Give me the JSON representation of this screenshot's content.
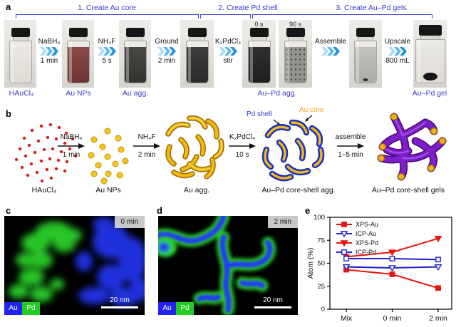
{
  "panel_a": {
    "letter": "a",
    "step_brackets": [
      {
        "label": "1. Create Au core"
      },
      {
        "label": "2. Create Pd shell"
      },
      {
        "label": "3. Create Au–Pd gels"
      }
    ],
    "process_arrows": [
      {
        "top": "NaBH₄",
        "bottom": "1 min"
      },
      {
        "top": "NH₄F",
        "bottom": "5 s"
      },
      {
        "top": "Ground",
        "bottom": "2 min"
      },
      {
        "top": "K₂PdCl₄",
        "bottom": "stir"
      },
      {
        "top": "Assemble",
        "bottom": ""
      },
      {
        "top": "Upscale",
        "bottom": "800 mL"
      }
    ],
    "vial_time_labels": [
      "0 s",
      "90 s"
    ],
    "product_labels": [
      "HAuCl₄",
      "Au NPs",
      "Au agg.",
      "Au–Pd agg.",
      "Au–Pd gel"
    ]
  },
  "panel_b": {
    "letter": "b",
    "stage_labels": [
      "HAuCl₄",
      "Au NPs",
      "Au agg.",
      "Au–Pd core-shell agg.",
      "Au–Pd core-shell gels"
    ],
    "arrows": [
      {
        "top": "NaBH₄",
        "bottom": "1 min"
      },
      {
        "top": "NH₄F",
        "bottom": "2 min"
      },
      {
        "top": "K₂PdCl₄",
        "bottom": "10 s"
      },
      {
        "top": "assemble",
        "bottom": "1–5 min"
      }
    ],
    "callouts": {
      "pd_shell": "Pd shell",
      "au_core": "Au core"
    }
  },
  "panel_c": {
    "letter": "c",
    "time_badge": "0 min",
    "legend": [
      {
        "label": "Au",
        "color": "#2222ee"
      },
      {
        "label": "Pd",
        "color": "#22cc22"
      }
    ],
    "scale_label": "20 nm"
  },
  "panel_d": {
    "letter": "d",
    "time_badge": "2 min",
    "legend": [
      {
        "label": "Au",
        "color": "#2222ee"
      },
      {
        "label": "Pd",
        "color": "#22cc22"
      }
    ],
    "scale_label": "20 nm"
  },
  "panel_e": {
    "letter": "e"
  },
  "chart_data": {
    "type": "line",
    "categories": [
      "Mix",
      "0 min",
      "2 min"
    ],
    "series": [
      {
        "name": "XPS-Au",
        "color": "#e8140c",
        "marker": "square",
        "fill": "filled",
        "values": [
          43,
          38,
          23
        ]
      },
      {
        "name": "ICP-Au",
        "color": "#2222cc",
        "marker": "triangle-down",
        "fill": "open",
        "values": [
          46,
          45,
          46
        ]
      },
      {
        "name": "XPS-Pd",
        "color": "#e8140c",
        "marker": "triangle-down",
        "fill": "filled",
        "values": [
          57,
          62,
          77
        ]
      },
      {
        "name": "ICP-Pd",
        "color": "#2222cc",
        "marker": "square",
        "fill": "open",
        "values": [
          55,
          55,
          54
        ]
      }
    ],
    "title": "",
    "xlabel": "",
    "ylabel": "Atom (%)",
    "ylim": [
      0,
      100
    ],
    "yticks": [
      0,
      25,
      50,
      75,
      100
    ],
    "legend_position": "upper-left",
    "grid": false
  },
  "colors": {
    "accent_blue": "#3c3ccd",
    "chart_red": "#e8140c",
    "chart_blue": "#2222cc",
    "au_blue": "#2222ee",
    "pd_green": "#22cc22",
    "gold": "#f2b811",
    "purple": "#7d1ec9"
  }
}
